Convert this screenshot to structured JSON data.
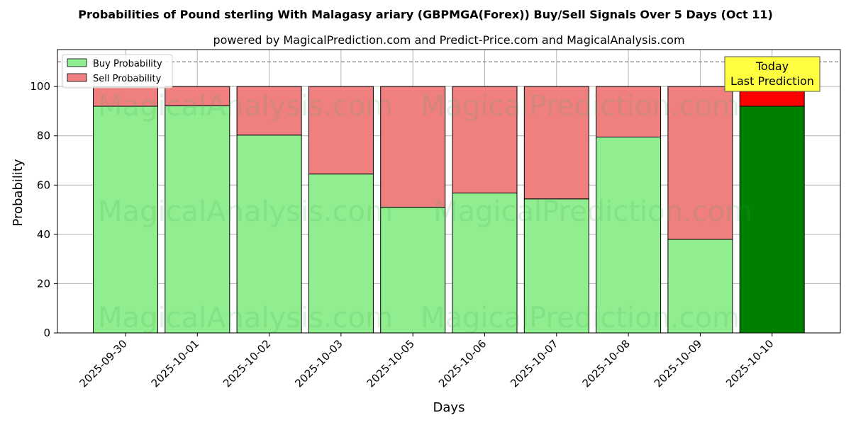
{
  "title": "Probabilities of Pound sterling With Malagasy ariary (GBPMGA(Forex)) Buy/Sell Signals Over 5 Days (Oct 11)",
  "subtitle": "powered by MagicalPrediction.com and Predict-Price.com and MagicalAnalysis.com",
  "watermarks": {
    "analysis": "MagicalAnalysis.com",
    "prediction": "MagicalPrediction.com"
  },
  "today_box": {
    "line1": "Today",
    "line2": "Last Prediction",
    "color": "#ffff40"
  },
  "colors": {
    "buy": "#90ee90",
    "sell": "#f08080",
    "buy_today": "#008000",
    "sell_today": "#ff0000"
  },
  "chart_data": {
    "type": "bar",
    "stacked": true,
    "title": "Probabilities of Pound sterling With Malagasy ariary (GBPMGA(Forex)) Buy/Sell Signals Over 5 Days (Oct 11)",
    "xlabel": "Days",
    "ylabel": "Probability",
    "ylim": [
      0,
      115
    ],
    "yticks": [
      0,
      20,
      40,
      60,
      80,
      100
    ],
    "reference_line": 110,
    "grid": true,
    "legend_position": "top-left",
    "categories": [
      "2025-09-30",
      "2025-10-01",
      "2025-10-02",
      "2025-10-03",
      "2025-10-05",
      "2025-10-06",
      "2025-10-07",
      "2025-10-08",
      "2025-10-09",
      "2025-10-10"
    ],
    "series": [
      {
        "name": "Buy Probability",
        "values": [
          92,
          92.2,
          80.3,
          64.5,
          51,
          56.8,
          54.4,
          79.5,
          38,
          92
        ]
      },
      {
        "name": "Sell Probability",
        "values": [
          8,
          7.8,
          19.7,
          35.5,
          49,
          43.2,
          45.6,
          20.5,
          62,
          8
        ]
      }
    ],
    "highlight_index": 9
  }
}
